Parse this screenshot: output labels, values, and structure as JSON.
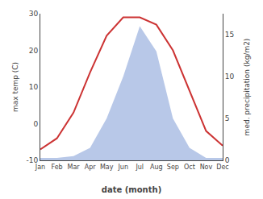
{
  "chart_data": {
    "type": "line",
    "x_label": "date (month)",
    "y_label": "max temp (C)",
    "y2_label": "med. precipitation (kg/m2)",
    "categories": [
      "Jan",
      "Feb",
      "Mar",
      "Apr",
      "May",
      "Jun",
      "Jul",
      "Aug",
      "Sep",
      "Oct",
      "Nov",
      "Dec"
    ],
    "series": [
      {
        "type": "area",
        "axis": "y2",
        "color": "#b8c8e8",
        "values": [
          0.3,
          0.3,
          0.5,
          1.5,
          5,
          10,
          16,
          13,
          5,
          1.5,
          0.3,
          0.3
        ]
      },
      {
        "type": "line",
        "color": "#cc3333",
        "values": [
          -7,
          -4,
          3,
          14,
          24,
          29,
          29,
          27,
          20,
          9,
          -2,
          -6
        ]
      }
    ],
    "ylim": [
      -10,
      30
    ],
    "yticks": [
      -10,
      0,
      10,
      20,
      30
    ],
    "y2lim": [
      0,
      17.5
    ],
    "y2ticks": [
      0,
      5,
      10,
      15
    ],
    "grid": false
  }
}
